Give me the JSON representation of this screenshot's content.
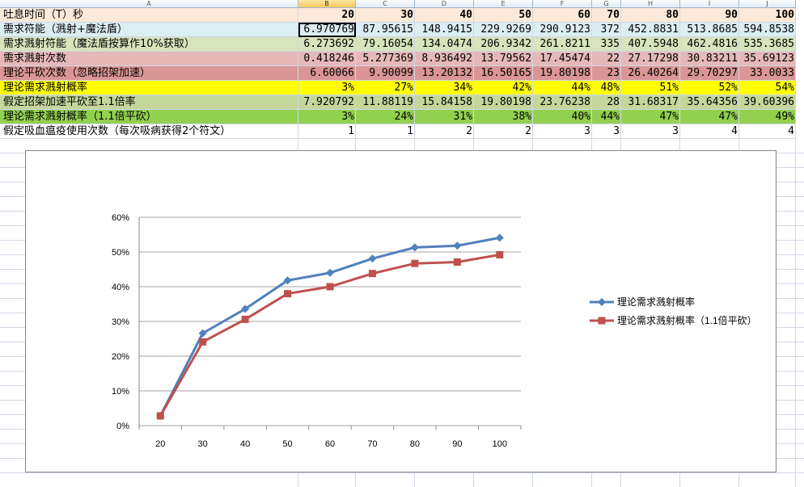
{
  "columns": [
    "A",
    "B",
    "C",
    "D",
    "E",
    "F",
    "G",
    "H",
    "I",
    "J"
  ],
  "selected_column": "B",
  "rows": [
    {
      "label": "吐息时间（T）秒",
      "values": [
        "20",
        "30",
        "40",
        "50",
        "60",
        "70",
        "80",
        "90",
        "100"
      ],
      "bg": "#fde9d9",
      "bold": true
    },
    {
      "label": "需求符能（溅射+魔法盾）",
      "values": [
        "6.970769",
        "87.95615",
        "148.9415",
        "229.9269",
        "290.9123",
        "372",
        "452.8831",
        "513.8685",
        "594.8538"
      ],
      "bg": "#dbeef4"
    },
    {
      "label": "需求溅射符能（魔法盾按算作10%获取）",
      "values": [
        "6.273692",
        "79.16054",
        "134.0474",
        "206.9342",
        "261.8211",
        "335",
        "407.5948",
        "462.4816",
        "535.3685"
      ],
      "bg": "#d7e4bc"
    },
    {
      "label": "需求溅射次数",
      "values": [
        "0.418246",
        "5.277369",
        "8.936492",
        "13.79562",
        "17.45474",
        "22",
        "27.17298",
        "30.83211",
        "35.69123"
      ],
      "bg": "#e6b9b8"
    },
    {
      "label": "理论平砍次数（忽略招架加速）",
      "values": [
        "6.60066",
        "9.90099",
        "13.20132",
        "16.50165",
        "19.80198",
        "23",
        "26.40264",
        "29.70297",
        "33.0033"
      ],
      "bg": "#da9694"
    },
    {
      "label": "理论需求溅射概率",
      "values": [
        "3%",
        "27%",
        "34%",
        "42%",
        "44%",
        "48%",
        "51%",
        "52%",
        "54%"
      ],
      "bg": "#ffff00"
    },
    {
      "label": "假定招架加速平砍至1.1倍率",
      "values": [
        "7.920792",
        "11.88119",
        "15.84158",
        "19.80198",
        "23.76238",
        "28",
        "31.68317",
        "35.64356",
        "39.60396"
      ],
      "bg": "#c4d79b"
    },
    {
      "label": "理论需求溅射概率（1.1倍平砍）",
      "values": [
        "3%",
        "24%",
        "31%",
        "38%",
        "40%",
        "44%",
        "47%",
        "47%",
        "49%"
      ],
      "bg": "#92d050"
    },
    {
      "label": "假定吸血瘟疫使用次数（每次吸病获得2个符文）",
      "values": [
        "1",
        "1",
        "2",
        "2",
        "3",
        "3",
        "3",
        "4",
        "4"
      ],
      "bg": "#ffffff"
    }
  ],
  "chart_data": {
    "type": "line",
    "categories": [
      20,
      30,
      40,
      50,
      60,
      70,
      80,
      90,
      100
    ],
    "ylim": [
      0,
      0.6
    ],
    "yticks": [
      "0%",
      "10%",
      "20%",
      "30%",
      "40%",
      "50%",
      "60%"
    ],
    "grid": true,
    "legend_position": "right",
    "series": [
      {
        "name": "理论需求溅射概率",
        "values": [
          0.028,
          0.266,
          0.336,
          0.418,
          0.44,
          0.481,
          0.513,
          0.518,
          0.541
        ],
        "color": "#4f81bd",
        "marker": "diamond"
      },
      {
        "name": "理论需求溅射概率（1.1倍平砍）",
        "values": [
          0.028,
          0.241,
          0.306,
          0.38,
          0.4,
          0.438,
          0.467,
          0.471,
          0.492
        ],
        "color": "#c0504d",
        "marker": "square"
      }
    ]
  }
}
